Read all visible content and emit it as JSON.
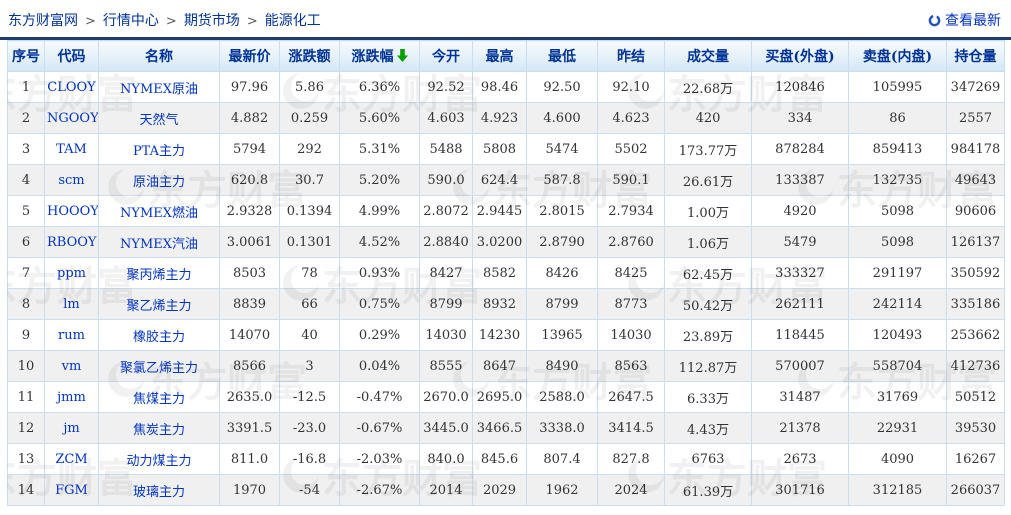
{
  "breadcrumb": {
    "items": [
      "东方财富网",
      "行情中心",
      "期货市场",
      "能源化工"
    ],
    "separator": ">"
  },
  "toolbar": {
    "refresh_label": "查看最新"
  },
  "watermark_text": "东方财富",
  "colors": {
    "up": "#ff0000",
    "down": "#00a000",
    "flat": "#333333",
    "link": "#003399",
    "sort_arrow": "#00a000",
    "divider": "#1e3c6e"
  },
  "table": {
    "columns": [
      "序号",
      "代码",
      "名称",
      "最新价",
      "涨跌额",
      "涨跌幅",
      "今开",
      "最高",
      "最低",
      "昨结",
      "成交量",
      "买盘(外盘)",
      "卖盘(内盘)",
      "持仓量"
    ],
    "sort": {
      "column": "涨跌幅",
      "direction": "desc"
    },
    "rows": [
      {
        "no": "1",
        "code": "CLOOY",
        "name": "NYMEX原油",
        "price": "97.96",
        "chg": "5.86",
        "pct": "6.36%",
        "open": "92.52",
        "high": "98.46",
        "low": "92.50",
        "prev": "92.10",
        "vol": "22.68万",
        "buy": "120846",
        "sell": "105995",
        "oi": "347269",
        "colors": "rrrrrr"
      },
      {
        "no": "2",
        "code": "NGOOY",
        "name": "天然气",
        "price": "4.882",
        "chg": "0.259",
        "pct": "5.60%",
        "open": "4.603",
        "high": "4.923",
        "low": "4.600",
        "prev": "4.623",
        "vol": "420",
        "buy": "334",
        "sell": "86",
        "oi": "2557",
        "colors": "rrrgrg"
      },
      {
        "no": "3",
        "code": "TAM",
        "name": "PTA主力",
        "price": "5794",
        "chg": "292",
        "pct": "5.31%",
        "open": "5488",
        "high": "5808",
        "low": "5474",
        "prev": "5502",
        "vol": "173.77万",
        "buy": "878284",
        "sell": "859413",
        "oi": "984178",
        "colors": "rrrgrg"
      },
      {
        "no": "4",
        "code": "scm",
        "name": "原油主力",
        "price": "620.8",
        "chg": "30.7",
        "pct": "5.20%",
        "open": "590.0",
        "high": "624.4",
        "low": "587.8",
        "prev": "590.1",
        "vol": "26.61万",
        "buy": "133387",
        "sell": "132735",
        "oi": "49643",
        "colors": "rrrgrg"
      },
      {
        "no": "5",
        "code": "HOOOY",
        "name": "NYMEX燃油",
        "price": "2.9328",
        "chg": "0.1394",
        "pct": "4.99%",
        "open": "2.8072",
        "high": "2.9445",
        "low": "2.8015",
        "prev": "2.7934",
        "vol": "1.00万",
        "buy": "4920",
        "sell": "5098",
        "oi": "90606",
        "colors": "rrrrrr"
      },
      {
        "no": "6",
        "code": "RBOOY",
        "name": "NYMEX汽油",
        "price": "3.0061",
        "chg": "0.1301",
        "pct": "4.52%",
        "open": "2.8840",
        "high": "3.0200",
        "low": "2.8790",
        "prev": "2.8760",
        "vol": "1.06万",
        "buy": "5479",
        "sell": "5098",
        "oi": "126137",
        "colors": "rrrrrr"
      },
      {
        "no": "7",
        "code": "ppm",
        "name": "聚丙烯主力",
        "price": "8503",
        "chg": "78",
        "pct": "0.93%",
        "open": "8427",
        "high": "8582",
        "low": "8426",
        "prev": "8425",
        "vol": "62.45万",
        "buy": "333327",
        "sell": "291197",
        "oi": "350592",
        "colors": "rrrrrr"
      },
      {
        "no": "8",
        "code": "lm",
        "name": "聚乙烯主力",
        "price": "8839",
        "chg": "66",
        "pct": "0.75%",
        "open": "8799",
        "high": "8932",
        "low": "8799",
        "prev": "8773",
        "vol": "50.42万",
        "buy": "262111",
        "sell": "242114",
        "oi": "335186",
        "colors": "rrrrrr"
      },
      {
        "no": "9",
        "code": "rum",
        "name": "橡胶主力",
        "price": "14070",
        "chg": "40",
        "pct": "0.29%",
        "open": "14030",
        "high": "14230",
        "low": "13965",
        "prev": "14030",
        "vol": "23.89万",
        "buy": "118445",
        "sell": "120493",
        "oi": "253662",
        "colors": "rrrkrg"
      },
      {
        "no": "10",
        "code": "vm",
        "name": "聚氯乙烯主力",
        "price": "8566",
        "chg": "3",
        "pct": "0.04%",
        "open": "8555",
        "high": "8647",
        "low": "8490",
        "prev": "8563",
        "vol": "112.87万",
        "buy": "570007",
        "sell": "558704",
        "oi": "412736",
        "colors": "rrrgrg"
      },
      {
        "no": "11",
        "code": "jmm",
        "name": "焦煤主力",
        "price": "2635.0",
        "chg": "-12.5",
        "pct": "-0.47%",
        "open": "2670.0",
        "high": "2695.0",
        "low": "2588.0",
        "prev": "2647.5",
        "vol": "6.33万",
        "buy": "31487",
        "sell": "31769",
        "oi": "50512",
        "colors": "gggrrg"
      },
      {
        "no": "12",
        "code": "jm",
        "name": "焦炭主力",
        "price": "3391.5",
        "chg": "-23.0",
        "pct": "-0.67%",
        "open": "3445.0",
        "high": "3466.5",
        "low": "3338.0",
        "prev": "3414.5",
        "vol": "4.43万",
        "buy": "21378",
        "sell": "22931",
        "oi": "39530",
        "colors": "gggrrg"
      },
      {
        "no": "13",
        "code": "ZCM",
        "name": "动力煤主力",
        "price": "811.0",
        "chg": "-16.8",
        "pct": "-2.03%",
        "open": "840.0",
        "high": "845.6",
        "low": "807.4",
        "prev": "827.8",
        "vol": "6763",
        "buy": "2673",
        "sell": "4090",
        "oi": "16267",
        "colors": "gggrrg"
      },
      {
        "no": "14",
        "code": "FGM",
        "name": "玻璃主力",
        "price": "1970",
        "chg": "-54",
        "pct": "-2.67%",
        "open": "2014",
        "high": "2029",
        "low": "1962",
        "prev": "2024",
        "vol": "61.39万",
        "buy": "301716",
        "sell": "312185",
        "oi": "266037",
        "colors": "ggggrg"
      }
    ]
  }
}
